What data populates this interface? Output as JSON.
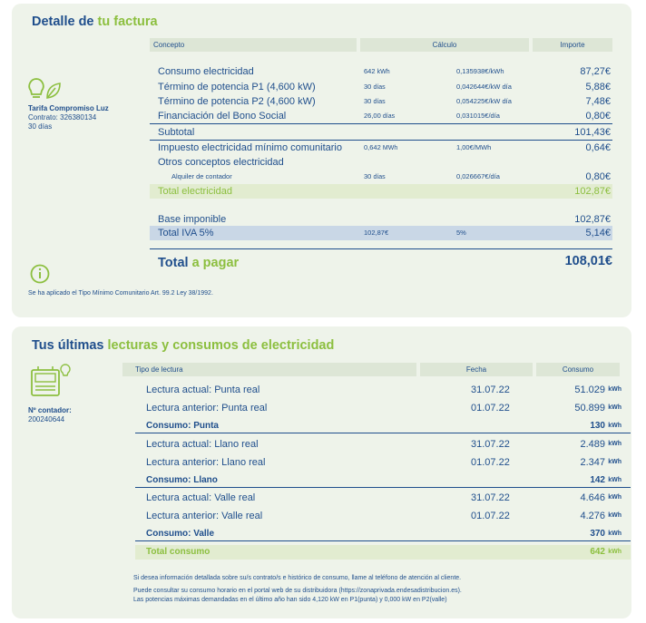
{
  "invoice": {
    "title_part1": "Detalle de",
    "title_part2": "tu factura",
    "tariff": "Tarifa Compromiso Luz",
    "contract": "Contrato: 326380134",
    "days": "30 días",
    "headers": {
      "concept": "Concepto",
      "calc": "Cálculo",
      "amount": "Importe"
    },
    "rows": [
      {
        "concept": "Consumo electricidad",
        "qty": "642",
        "qty_unit": "kWh",
        "price": "0,135938€/kWh",
        "amount": "87,27€"
      },
      {
        "concept": "Término de potencia P1 (4,600 kW)",
        "qty": "30",
        "qty_unit": "días",
        "price": "0,042644€/kW día",
        "amount": "5,88€"
      },
      {
        "concept": "Término de potencia P2 (4,600 kW)",
        "qty": "30",
        "qty_unit": "días",
        "price": "0,054225€/kW día",
        "amount": "7,48€"
      },
      {
        "concept": "Financiación del Bono Social",
        "qty": "26,00",
        "qty_unit": "días",
        "price": "0,031015€/día",
        "amount": "0,80€"
      },
      {
        "concept": "Subtotal",
        "qty": "",
        "qty_unit": "",
        "price": "",
        "amount": "101,43€"
      },
      {
        "concept": "Impuesto electricidad mínimo comunitario",
        "qty": "0,642",
        "qty_unit": "MWh",
        "price": "1,00€/MWh",
        "amount": "0,64€"
      },
      {
        "concept": "Otros conceptos electricidad",
        "qty": "",
        "qty_unit": "",
        "price": "",
        "amount": ""
      },
      {
        "concept": "Alquiler de contador",
        "qty": "30",
        "qty_unit": "días",
        "price": "0,026667€/día",
        "amount": "0,80€"
      },
      {
        "concept": "Total electricidad",
        "qty": "",
        "qty_unit": "",
        "price": "",
        "amount": "102,87€"
      },
      {
        "concept": "Base imponible",
        "qty": "",
        "qty_unit": "",
        "price": "",
        "amount": "102,87€"
      },
      {
        "concept": "Total IVA 5%",
        "qty": "102,87€",
        "qty_unit": "",
        "price": "5%",
        "amount": "5,14€"
      }
    ],
    "total_label1": "Total",
    "total_label2": "a pagar",
    "total_amount": "108,01€",
    "note": "Se ha aplicado el Tipo Mínimo Comunitario Art. 99.2 Ley 38/1992."
  },
  "readings": {
    "title_part1": "Tus últimas",
    "title_part2": "lecturas y consumos de electricidad",
    "meter_label": "Nº contador:",
    "meter_number": "200240644",
    "headers": {
      "type": "Tipo de lectura",
      "date": "Fecha",
      "consumption": "Consumo"
    },
    "rows": [
      {
        "label": "Lectura actual: Punta real",
        "date": "31.07.22",
        "value": "51.029",
        "unit": "kWh"
      },
      {
        "label": "Lectura anterior: Punta real",
        "date": "01.07.22",
        "value": "50.899",
        "unit": "kWh"
      },
      {
        "label": "Consumo: Punta",
        "date": "",
        "value": "130",
        "unit": "kWh"
      },
      {
        "label": "Lectura actual: Llano real",
        "date": "31.07.22",
        "value": "2.489",
        "unit": "kWh"
      },
      {
        "label": "Lectura anterior: Llano real",
        "date": "01.07.22",
        "value": "2.347",
        "unit": "kWh"
      },
      {
        "label": "Consumo: Llano",
        "date": "",
        "value": "142",
        "unit": "kWh"
      },
      {
        "label": "Lectura actual: Valle real",
        "date": "31.07.22",
        "value": "4.646",
        "unit": "kWh"
      },
      {
        "label": "Lectura anterior: Valle real",
        "date": "01.07.22",
        "value": "4.276",
        "unit": "kWh"
      },
      {
        "label": "Consumo: Valle",
        "date": "",
        "value": "370",
        "unit": "kWh"
      },
      {
        "label": "Total consumo",
        "date": "",
        "value": "642",
        "unit": "kWh"
      }
    ],
    "foot1": "Si desea información detallada sobre su/s contrato/s e histórico de consumo, llame al teléfono de atención al cliente.",
    "foot2": "Puede consultar su consumo horario en el portal web de su distribuidora (https://zonaprivada.endesadistribucion.es).",
    "foot3": "Las potencias máximas demandadas en el último año han sido 4,120 kW en P1(punta) y 0,000 kW en P2(valle)"
  }
}
